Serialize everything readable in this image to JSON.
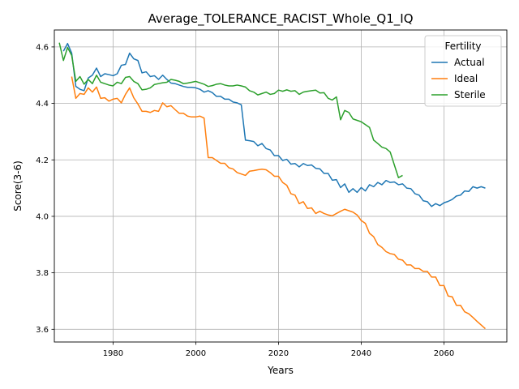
{
  "chart_data": {
    "type": "line",
    "title": "Average_TOLERANCE_RACIST_Whole_Q1_IQ",
    "xlabel": "Years",
    "ylabel": "Score(3-6)",
    "xlim": [
      1965.8,
      2075.2
    ],
    "ylim": [
      3.555,
      4.66
    ],
    "xticks": [
      1980,
      2000,
      2020,
      2040,
      2060
    ],
    "yticks": [
      3.6,
      3.8,
      4.0,
      4.2,
      4.4,
      4.6
    ],
    "xtick_labels": [
      "1980",
      "2000",
      "2020",
      "2040",
      "2060"
    ],
    "ytick_labels": [
      "3.6",
      "3.8",
      "4.0",
      "4.2",
      "4.4",
      "4.6"
    ],
    "grid": true,
    "legend": {
      "title": "Fertility",
      "position": "top-right"
    },
    "series": [
      {
        "name": "Actual",
        "color": "#1f77b4",
        "points": [
          [
            1968,
            4.585
          ],
          [
            1969,
            4.612
          ],
          [
            1970,
            4.578
          ],
          [
            1971,
            4.46
          ],
          [
            1972,
            4.45
          ],
          [
            1973,
            4.445
          ],
          [
            1974,
            4.49
          ],
          [
            1975,
            4.5
          ],
          [
            1976,
            4.525
          ],
          [
            1977,
            4.495
          ],
          [
            1978,
            4.505
          ],
          [
            1979,
            4.502
          ],
          [
            1980,
            4.498
          ],
          [
            1981,
            4.505
          ],
          [
            1982,
            4.535
          ],
          [
            1983,
            4.538
          ],
          [
            1984,
            4.578
          ],
          [
            1985,
            4.558
          ],
          [
            1986,
            4.552
          ],
          [
            1987,
            4.508
          ],
          [
            1988,
            4.512
          ],
          [
            1989,
            4.495
          ],
          [
            1990,
            4.498
          ],
          [
            1991,
            4.485
          ],
          [
            1992,
            4.5
          ],
          [
            1993,
            4.485
          ],
          [
            1994,
            4.472
          ],
          [
            1995,
            4.47
          ],
          [
            1996,
            4.465
          ],
          [
            1997,
            4.46
          ],
          [
            1998,
            4.457
          ],
          [
            1999,
            4.457
          ],
          [
            2000,
            4.455
          ],
          [
            2001,
            4.45
          ],
          [
            2002,
            4.44
          ],
          [
            2003,
            4.445
          ],
          [
            2004,
            4.438
          ],
          [
            2005,
            4.425
          ],
          [
            2006,
            4.425
          ],
          [
            2007,
            4.415
          ],
          [
            2008,
            4.415
          ],
          [
            2009,
            4.405
          ],
          [
            2010,
            4.402
          ],
          [
            2011,
            4.395
          ],
          [
            2012,
            4.27
          ],
          [
            2013,
            4.268
          ],
          [
            2014,
            4.265
          ],
          [
            2015,
            4.25
          ],
          [
            2016,
            4.258
          ],
          [
            2017,
            4.24
          ],
          [
            2018,
            4.235
          ],
          [
            2019,
            4.215
          ],
          [
            2020,
            4.215
          ],
          [
            2021,
            4.198
          ],
          [
            2022,
            4.202
          ],
          [
            2023,
            4.185
          ],
          [
            2024,
            4.187
          ],
          [
            2025,
            4.175
          ],
          [
            2026,
            4.187
          ],
          [
            2027,
            4.18
          ],
          [
            2028,
            4.182
          ],
          [
            2029,
            4.17
          ],
          [
            2030,
            4.168
          ],
          [
            2031,
            4.152
          ],
          [
            2032,
            4.152
          ],
          [
            2033,
            4.128
          ],
          [
            2034,
            4.13
          ],
          [
            2035,
            4.102
          ],
          [
            2036,
            4.115
          ],
          [
            2037,
            4.085
          ],
          [
            2038,
            4.098
          ],
          [
            2039,
            4.085
          ],
          [
            2040,
            4.102
          ],
          [
            2041,
            4.09
          ],
          [
            2042,
            4.112
          ],
          [
            2043,
            4.105
          ],
          [
            2044,
            4.12
          ],
          [
            2045,
            4.112
          ],
          [
            2046,
            4.127
          ],
          [
            2047,
            4.12
          ],
          [
            2048,
            4.122
          ],
          [
            2049,
            4.112
          ],
          [
            2050,
            4.115
          ],
          [
            2051,
            4.1
          ],
          [
            2052,
            4.098
          ],
          [
            2053,
            4.08
          ],
          [
            2054,
            4.075
          ],
          [
            2055,
            4.055
          ],
          [
            2056,
            4.052
          ],
          [
            2057,
            4.035
          ],
          [
            2058,
            4.045
          ],
          [
            2059,
            4.038
          ],
          [
            2060,
            4.048
          ],
          [
            2061,
            4.053
          ],
          [
            2062,
            4.06
          ],
          [
            2063,
            4.072
          ],
          [
            2064,
            4.075
          ],
          [
            2065,
            4.09
          ],
          [
            2066,
            4.088
          ],
          [
            2067,
            4.105
          ],
          [
            2068,
            4.1
          ],
          [
            2069,
            4.105
          ],
          [
            2070,
            4.1
          ]
        ]
      },
      {
        "name": "Ideal",
        "color": "#ff7f0e",
        "points": [
          [
            1970,
            4.495
          ],
          [
            1971,
            4.418
          ],
          [
            1972,
            4.435
          ],
          [
            1973,
            4.432
          ],
          [
            1974,
            4.455
          ],
          [
            1975,
            4.44
          ],
          [
            1976,
            4.458
          ],
          [
            1977,
            4.418
          ],
          [
            1978,
            4.42
          ],
          [
            1979,
            4.408
          ],
          [
            1980,
            4.415
          ],
          [
            1981,
            4.418
          ],
          [
            1982,
            4.402
          ],
          [
            1983,
            4.432
          ],
          [
            1984,
            4.455
          ],
          [
            1985,
            4.42
          ],
          [
            1986,
            4.398
          ],
          [
            1987,
            4.372
          ],
          [
            1988,
            4.372
          ],
          [
            1989,
            4.368
          ],
          [
            1990,
            4.375
          ],
          [
            1991,
            4.372
          ],
          [
            1992,
            4.402
          ],
          [
            1993,
            4.388
          ],
          [
            1994,
            4.392
          ],
          [
            1995,
            4.378
          ],
          [
            1996,
            4.365
          ],
          [
            1997,
            4.365
          ],
          [
            1998,
            4.355
          ],
          [
            1999,
            4.352
          ],
          [
            2000,
            4.352
          ],
          [
            2001,
            4.355
          ],
          [
            2002,
            4.348
          ],
          [
            2003,
            4.208
          ],
          [
            2004,
            4.208
          ],
          [
            2005,
            4.198
          ],
          [
            2006,
            4.188
          ],
          [
            2007,
            4.188
          ],
          [
            2008,
            4.172
          ],
          [
            2009,
            4.168
          ],
          [
            2010,
            4.155
          ],
          [
            2011,
            4.15
          ],
          [
            2012,
            4.145
          ],
          [
            2013,
            4.16
          ],
          [
            2014,
            4.162
          ],
          [
            2015,
            4.165
          ],
          [
            2016,
            4.167
          ],
          [
            2017,
            4.165
          ],
          [
            2018,
            4.155
          ],
          [
            2019,
            4.142
          ],
          [
            2020,
            4.142
          ],
          [
            2021,
            4.12
          ],
          [
            2022,
            4.11
          ],
          [
            2023,
            4.08
          ],
          [
            2024,
            4.075
          ],
          [
            2025,
            4.045
          ],
          [
            2026,
            4.052
          ],
          [
            2027,
            4.028
          ],
          [
            2028,
            4.03
          ],
          [
            2029,
            4.01
          ],
          [
            2030,
            4.018
          ],
          [
            2031,
            4.01
          ],
          [
            2032,
            4.005
          ],
          [
            2033,
            4.002
          ],
          [
            2034,
            4.01
          ],
          [
            2035,
            4.018
          ],
          [
            2036,
            4.025
          ],
          [
            2037,
            4.02
          ],
          [
            2038,
            4.015
          ],
          [
            2039,
            4.005
          ],
          [
            2040,
            3.985
          ],
          [
            2041,
            3.975
          ],
          [
            2042,
            3.94
          ],
          [
            2043,
            3.928
          ],
          [
            2044,
            3.9
          ],
          [
            2045,
            3.89
          ],
          [
            2046,
            3.875
          ],
          [
            2047,
            3.868
          ],
          [
            2048,
            3.865
          ],
          [
            2049,
            3.848
          ],
          [
            2050,
            3.845
          ],
          [
            2051,
            3.828
          ],
          [
            2052,
            3.828
          ],
          [
            2053,
            3.815
          ],
          [
            2054,
            3.815
          ],
          [
            2055,
            3.805
          ],
          [
            2056,
            3.805
          ],
          [
            2057,
            3.785
          ],
          [
            2058,
            3.785
          ],
          [
            2059,
            3.755
          ],
          [
            2060,
            3.755
          ],
          [
            2061,
            3.718
          ],
          [
            2062,
            3.715
          ],
          [
            2063,
            3.685
          ],
          [
            2064,
            3.685
          ],
          [
            2065,
            3.662
          ],
          [
            2066,
            3.655
          ],
          [
            2067,
            3.642
          ],
          [
            2068,
            3.628
          ],
          [
            2069,
            3.615
          ],
          [
            2070,
            3.602
          ]
        ]
      },
      {
        "name": "Sterile",
        "color": "#2ca02c",
        "points": [
          [
            1967,
            4.615
          ],
          [
            1968,
            4.552
          ],
          [
            1969,
            4.598
          ],
          [
            1970,
            4.57
          ],
          [
            1971,
            4.478
          ],
          [
            1972,
            4.495
          ],
          [
            1973,
            4.468
          ],
          [
            1974,
            4.485
          ],
          [
            1975,
            4.47
          ],
          [
            1976,
            4.5
          ],
          [
            1977,
            4.475
          ],
          [
            1978,
            4.47
          ],
          [
            1979,
            4.465
          ],
          [
            1980,
            4.462
          ],
          [
            1981,
            4.475
          ],
          [
            1982,
            4.47
          ],
          [
            1983,
            4.492
          ],
          [
            1984,
            4.495
          ],
          [
            1985,
            4.478
          ],
          [
            1986,
            4.47
          ],
          [
            1987,
            4.448
          ],
          [
            1988,
            4.45
          ],
          [
            1989,
            4.455
          ],
          [
            1990,
            4.467
          ],
          [
            1991,
            4.47
          ],
          [
            1992,
            4.473
          ],
          [
            1993,
            4.475
          ],
          [
            1994,
            4.485
          ],
          [
            1995,
            4.482
          ],
          [
            1996,
            4.478
          ],
          [
            1997,
            4.47
          ],
          [
            1998,
            4.472
          ],
          [
            1999,
            4.475
          ],
          [
            2000,
            4.478
          ],
          [
            2001,
            4.473
          ],
          [
            2002,
            4.468
          ],
          [
            2003,
            4.46
          ],
          [
            2004,
            4.463
          ],
          [
            2005,
            4.468
          ],
          [
            2006,
            4.47
          ],
          [
            2007,
            4.465
          ],
          [
            2008,
            4.462
          ],
          [
            2009,
            4.462
          ],
          [
            2010,
            4.465
          ],
          [
            2011,
            4.462
          ],
          [
            2012,
            4.458
          ],
          [
            2013,
            4.445
          ],
          [
            2014,
            4.44
          ],
          [
            2015,
            4.43
          ],
          [
            2016,
            4.435
          ],
          [
            2017,
            4.44
          ],
          [
            2018,
            4.432
          ],
          [
            2019,
            4.435
          ],
          [
            2020,
            4.447
          ],
          [
            2021,
            4.443
          ],
          [
            2022,
            4.448
          ],
          [
            2023,
            4.443
          ],
          [
            2024,
            4.445
          ],
          [
            2025,
            4.432
          ],
          [
            2026,
            4.44
          ],
          [
            2027,
            4.443
          ],
          [
            2028,
            4.445
          ],
          [
            2029,
            4.447
          ],
          [
            2030,
            4.437
          ],
          [
            2031,
            4.438
          ],
          [
            2032,
            4.418
          ],
          [
            2033,
            4.412
          ],
          [
            2034,
            4.423
          ],
          [
            2035,
            4.342
          ],
          [
            2036,
            4.375
          ],
          [
            2037,
            4.368
          ],
          [
            2038,
            4.345
          ],
          [
            2039,
            4.34
          ],
          [
            2040,
            4.335
          ],
          [
            2041,
            4.325
          ],
          [
            2042,
            4.315
          ],
          [
            2043,
            4.27
          ],
          [
            2044,
            4.258
          ],
          [
            2045,
            4.245
          ],
          [
            2046,
            4.24
          ],
          [
            2047,
            4.228
          ],
          [
            2048,
            4.182
          ],
          [
            2049,
            4.137
          ],
          [
            2050,
            4.145
          ]
        ]
      }
    ]
  }
}
